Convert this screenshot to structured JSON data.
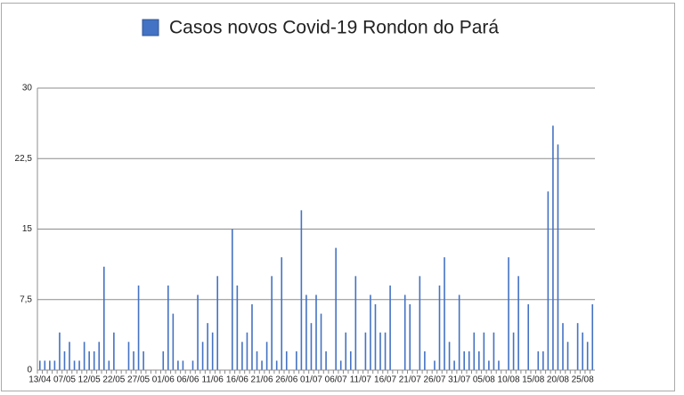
{
  "chart_data": {
    "type": "bar",
    "categories": [
      "13/04",
      null,
      null,
      null,
      null,
      "07/05",
      null,
      null,
      null,
      null,
      "12/05",
      null,
      null,
      null,
      null,
      "22/05",
      null,
      null,
      null,
      null,
      "27/05",
      null,
      null,
      null,
      null,
      "01/06",
      null,
      null,
      null,
      null,
      "06/06",
      null,
      null,
      null,
      null,
      "11/06",
      null,
      null,
      null,
      null,
      "16/06",
      null,
      null,
      null,
      null,
      "21/06",
      null,
      null,
      null,
      null,
      "26/06",
      null,
      null,
      null,
      null,
      "01/07",
      null,
      null,
      null,
      null,
      "06/07",
      null,
      null,
      null,
      null,
      "11/07",
      null,
      null,
      null,
      null,
      "16/07",
      null,
      null,
      null,
      null,
      "21/07",
      null,
      null,
      null,
      null,
      "26/07",
      null,
      null,
      null,
      null,
      "31/07",
      null,
      null,
      null,
      null,
      "05/08",
      null,
      null,
      null,
      null,
      "10/08",
      null,
      null,
      null,
      null,
      "15/08",
      null,
      null,
      null,
      null,
      "20/08",
      null,
      null,
      null,
      null,
      "25/08",
      null,
      null
    ],
    "series": [
      {
        "name": "Casos novos Covid-19 Rondon do Pará",
        "color": "#4472c4",
        "values": [
          1,
          1,
          1,
          1,
          4,
          2,
          3,
          1,
          1,
          3,
          2,
          2,
          3,
          11,
          1,
          4,
          0,
          0,
          3,
          2,
          9,
          2,
          0,
          0,
          0,
          2,
          9,
          6,
          1,
          1,
          0,
          1,
          8,
          3,
          5,
          4,
          10,
          0,
          0,
          15,
          9,
          3,
          4,
          7,
          2,
          1,
          3,
          10,
          1,
          12,
          2,
          0,
          2,
          17,
          8,
          5,
          8,
          6,
          2,
          0,
          13,
          1,
          4,
          2,
          10,
          0,
          4,
          8,
          7,
          4,
          4,
          9,
          0,
          0,
          8,
          7,
          0,
          10,
          2,
          0,
          1,
          9,
          12,
          3,
          1,
          8,
          2,
          2,
          4,
          2,
          4,
          1,
          4,
          1,
          0,
          12,
          4,
          10,
          0,
          7,
          0,
          2,
          2,
          19,
          26,
          24,
          5,
          3,
          0,
          5,
          4,
          3,
          7
        ]
      }
    ],
    "ylim": [
      0,
      30
    ],
    "yticks": [
      0,
      {
        "value": 7.5,
        "label": "7,5"
      },
      15,
      {
        "value": 22.5,
        "label": "22,5"
      },
      30
    ],
    "grid": true
  }
}
